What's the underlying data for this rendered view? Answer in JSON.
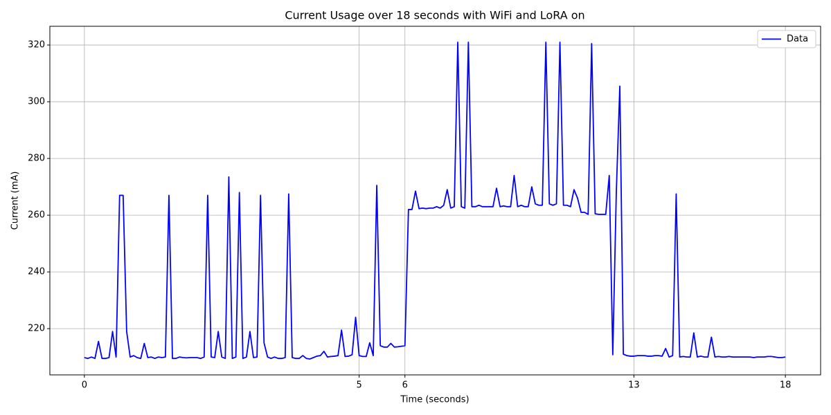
{
  "chart_data": {
    "type": "line",
    "title": "Current Usage over 18 seconds with WiFi and LoRA on",
    "x_label": "Time (seconds)",
    "y_label": "Current (mA)",
    "series": [
      {
        "name": "Data",
        "color": "#0000ff",
        "values": [
          209.8,
          209.5,
          210,
          209.5,
          215.5,
          209.5,
          209.5,
          209.8,
          219,
          210,
          267,
          267,
          219,
          210,
          210.5,
          209.8,
          209.5,
          214.8,
          209.8,
          210,
          209.5,
          210,
          209.8,
          210,
          267,
          209.5,
          209.5,
          210,
          209.8,
          209.7,
          209.8,
          209.8,
          209.8,
          209.5,
          210,
          267,
          210,
          209.8,
          219,
          210,
          209.5,
          273.5,
          209.5,
          210,
          268,
          209.5,
          210,
          219,
          209.8,
          210,
          267,
          215,
          210,
          209.5,
          210,
          209.5,
          209.5,
          209.8,
          267.5,
          209.8,
          209.5,
          209.5,
          210.5,
          209.5,
          209.3,
          209.8,
          210.3,
          210.5,
          212,
          210,
          210.2,
          210.3,
          210.5,
          219.5,
          210.2,
          210.3,
          210.8,
          224,
          210.5,
          210.2,
          210.2,
          215,
          210.5,
          270.5,
          214,
          213.5,
          213.5,
          214.8,
          213.5,
          213.6,
          213.8,
          214,
          262,
          262,
          268.5,
          262.3,
          262.5,
          262.3,
          262.5,
          262.5,
          263,
          262.5,
          263.5,
          269,
          262.5,
          263,
          321,
          263,
          262.5,
          321,
          263,
          263,
          263.5,
          263,
          263,
          263,
          263,
          269.5,
          263,
          263.3,
          263,
          263,
          274,
          263,
          263.5,
          263,
          263,
          270,
          264,
          263.5,
          263.5,
          321,
          264,
          263.5,
          264,
          321,
          263.5,
          263.5,
          263,
          269,
          266,
          261,
          261,
          260.3,
          320.5,
          260.5,
          260.3,
          260.3,
          260.3,
          274,
          210.8,
          268,
          305.5,
          211,
          210.5,
          210.3,
          210.3,
          210.5,
          210.5,
          210.5,
          210.3,
          210.3,
          210.5,
          210.5,
          210.3,
          213,
          210,
          210.5,
          267.5,
          210,
          210.2,
          210,
          210,
          218.5,
          210,
          210.3,
          210,
          210,
          217,
          210,
          210.2,
          210,
          210,
          210.2,
          210,
          210,
          210,
          210,
          210,
          210,
          209.8,
          210,
          210,
          210,
          210.2,
          210.2,
          210,
          209.8,
          209.8,
          210
        ]
      }
    ],
    "xlim": [
      -9.8,
      209
    ],
    "xticks": [
      {
        "value": 0,
        "label": "0"
      },
      {
        "value": 78,
        "label": "5"
      },
      {
        "value": 91,
        "label": "6"
      },
      {
        "value": 156,
        "label": "13"
      },
      {
        "value": 199,
        "label": "18"
      }
    ],
    "ylim": [
      203.7,
      326.6
    ],
    "yticks": [
      220,
      240,
      260,
      280,
      300,
      320
    ],
    "grid": true,
    "legend": "upper-right"
  }
}
